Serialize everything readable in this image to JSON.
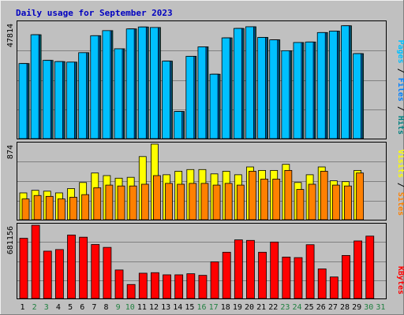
{
  "chart_data": {
    "type": "bar",
    "title": "Daily usage for September 2023",
    "categories": [
      "1",
      "2",
      "3",
      "4",
      "5",
      "6",
      "7",
      "8",
      "9",
      "10",
      "11",
      "12",
      "13",
      "14",
      "15",
      "16",
      "17",
      "18",
      "19",
      "20",
      "21",
      "22",
      "23",
      "24",
      "25",
      "26",
      "27",
      "28",
      "29",
      "30",
      "31"
    ],
    "weekend_days": [
      "2",
      "3",
      "9",
      "10",
      "16",
      "17",
      "23",
      "24",
      "30",
      "31"
    ],
    "colors": {
      "background": "#c0c0c0",
      "frame_light": "#f0f0f0",
      "frame_dark": "#808080",
      "grid": "#808080",
      "title": "#0000c0",
      "weekday": "#000000",
      "weekend": "#208040",
      "pages": "#00c0ff",
      "files": "#0080ff",
      "hits": "#008080",
      "visits": "#ffff00",
      "sites": "#ff8000",
      "kbytes": "#ff0000"
    },
    "panels": [
      {
        "id": "pages-files-hits",
        "max_label": "47814",
        "ymax": 47814,
        "legend": [
          {
            "text": "Pages",
            "color": "#00c0ff"
          },
          {
            "text": " / ",
            "color": "#000000"
          },
          {
            "text": "Files",
            "color": "#0080ff"
          },
          {
            "text": " / ",
            "color": "#000000"
          },
          {
            "text": "Hits",
            "color": "#008080"
          }
        ],
        "series": [
          {
            "name": "Hits",
            "color": "#008080",
            "values": [
              31000,
              42900,
              32300,
              31800,
              31600,
              35500,
              42500,
              44600,
              37100,
              45300,
              46100,
              45900,
              32000,
              11200,
              34000,
              37900,
              26600,
              41600,
              45500,
              46200,
              41800,
              40800,
              36300,
              39700,
              39900,
              43800,
              44400,
              46600,
              35100,
              0,
              0
            ]
          },
          {
            "name": "Files",
            "color": "#0080ff",
            "values": [
              31000,
              42900,
              32300,
              31800,
              31600,
              35500,
              42500,
              44600,
              37100,
              45300,
              46100,
              45900,
              32000,
              11200,
              34000,
              37900,
              26600,
              41600,
              45500,
              46200,
              41800,
              40800,
              36300,
              39700,
              39900,
              43800,
              44400,
              46600,
              35100,
              0,
              0
            ]
          },
          {
            "name": "Pages",
            "color": "#00c0ff",
            "values": [
              31000,
              42900,
              32300,
              31800,
              31600,
              35500,
              42500,
              44600,
              37100,
              45300,
              46100,
              45900,
              32000,
              11200,
              34000,
              37900,
              26600,
              41600,
              45500,
              46200,
              41800,
              40800,
              36300,
              39700,
              39900,
              43800,
              44400,
              46600,
              35100,
              0,
              0
            ]
          }
        ]
      },
      {
        "id": "visits-sites",
        "max_label": "874",
        "ymax": 874,
        "legend": [
          {
            "text": "Visits",
            "color": "#ffff00"
          },
          {
            "text": " / ",
            "color": "#000000"
          },
          {
            "text": "Sites",
            "color": "#ff8000"
          }
        ],
        "series": [
          {
            "name": "Visits",
            "color": "#ffff00",
            "values": [
              310,
              340,
              330,
              310,
              360,
              430,
              540,
              510,
              480,
              490,
              730,
              874,
              520,
              560,
              580,
              580,
              530,
              560,
              520,
              610,
              570,
              570,
              640,
              430,
              520,
              610,
              450,
              440,
              570,
              0,
              0
            ]
          },
          {
            "name": "Sites",
            "color": "#ff8000",
            "values": [
              240,
              280,
              270,
              240,
              260,
              290,
              370,
              400,
              390,
              390,
              410,
              510,
              420,
              410,
              420,
              420,
              400,
              420,
              400,
              560,
              470,
              470,
              570,
              350,
              410,
              560,
              400,
              390,
              540,
              0,
              0
            ]
          }
        ]
      },
      {
        "id": "kbytes",
        "max_label": "681156",
        "ymax": 681156,
        "legend": [
          {
            "text": "KBytes",
            "color": "#ff0000"
          }
        ],
        "series": [
          {
            "name": "KBytes",
            "color": "#ff0000",
            "values": [
              560000,
              681156,
              440000,
              455000,
              590000,
              570000,
              502000,
              475000,
              265000,
              130000,
              235000,
              240000,
              220000,
              220000,
              230000,
              215000,
              340000,
              430000,
              545000,
              540000,
              430000,
              525000,
              385000,
              380000,
              500000,
              275000,
              200000,
              400000,
              535000,
              580000,
              0
            ]
          }
        ]
      }
    ]
  }
}
